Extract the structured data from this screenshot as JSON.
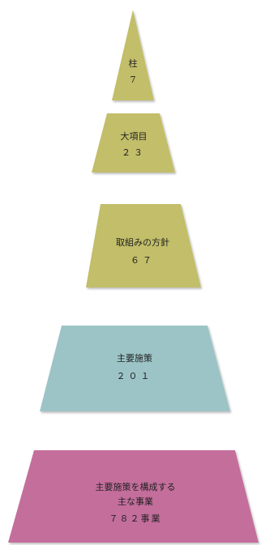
{
  "diagram": {
    "tiers": [
      {
        "id": "pillars",
        "lines": [
          "柱",
          "7"
        ],
        "color": "#c2be69"
      },
      {
        "id": "major-items",
        "lines": [
          "大項目",
          "２３"
        ],
        "color": "#c2be69"
      },
      {
        "id": "policies",
        "lines": [
          "取組みの方針",
          "６７"
        ],
        "color": "#c2be69"
      },
      {
        "id": "main-measures",
        "lines": [
          "主要施策",
          "２０１"
        ],
        "color": "#9cc4c6"
      },
      {
        "id": "projects",
        "lines": [
          "主要施策を構成する",
          "主な事業",
          "７８２事業"
        ],
        "color": "#c46e9c"
      }
    ]
  }
}
